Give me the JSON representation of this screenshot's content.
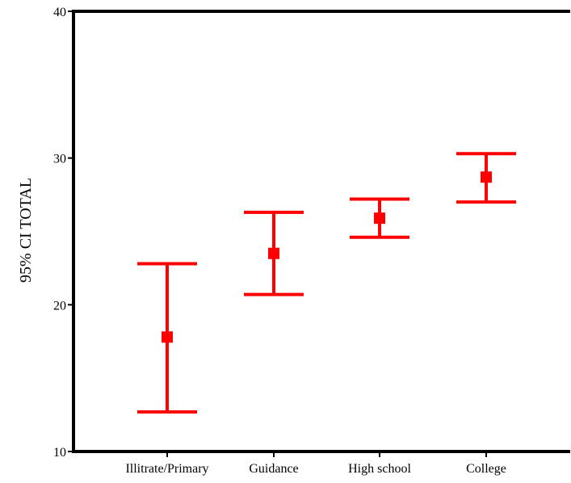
{
  "chart_data": {
    "type": "errorbar",
    "title": "",
    "xlabel": "",
    "ylabel": "95% CI TOTAL",
    "categories": [
      "Illitrate/Primary",
      "Guidance",
      "High school",
      "College"
    ],
    "ylim": [
      10,
      40
    ],
    "yticks": [
      10,
      20,
      30,
      40
    ],
    "means": [
      17.8,
      23.5,
      25.9,
      28.7
    ],
    "lower": [
      12.7,
      20.7,
      24.6,
      27.0
    ],
    "upper": [
      22.8,
      26.3,
      27.2,
      30.3
    ],
    "grid": false,
    "legend": "none",
    "color": "#ff0000",
    "axis_color": "#000000"
  }
}
